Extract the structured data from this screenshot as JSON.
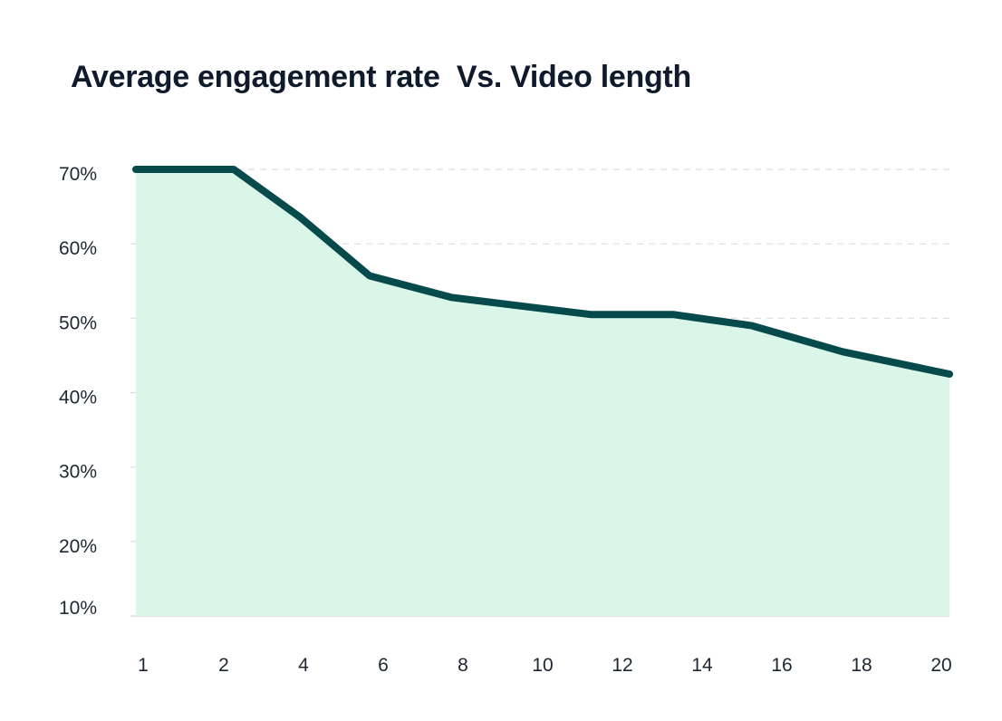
{
  "chart_data": {
    "type": "area",
    "title": "Average engagement rate  Vs. Video length",
    "xlabel": "",
    "ylabel": "",
    "x_ticks": [
      "1",
      "2",
      "4",
      "6",
      "8",
      "10",
      "12",
      "14",
      "16",
      "18",
      "20"
    ],
    "y_ticks": [
      "70%",
      "60%",
      "50%",
      "40%",
      "30%",
      "20%",
      "10%"
    ],
    "ylim": [
      10,
      71
    ],
    "grid": true,
    "legend": "none",
    "series": [
      {
        "x": [
          "1",
          "2",
          "4",
          "6",
          "8",
          "10",
          "12",
          "14",
          "16",
          "18",
          "20"
        ],
        "values": [
          70.0,
          70.0,
          63.5,
          55.7,
          52.8,
          51.6,
          50.5,
          50.5,
          49.0,
          45.5,
          42.5
        ]
      }
    ],
    "colors": {
      "line": "#074a4c",
      "fill": "#d9f6e8",
      "grid": "#d9dde2",
      "text": "#1f2733",
      "title": "#0f1a2b"
    }
  }
}
